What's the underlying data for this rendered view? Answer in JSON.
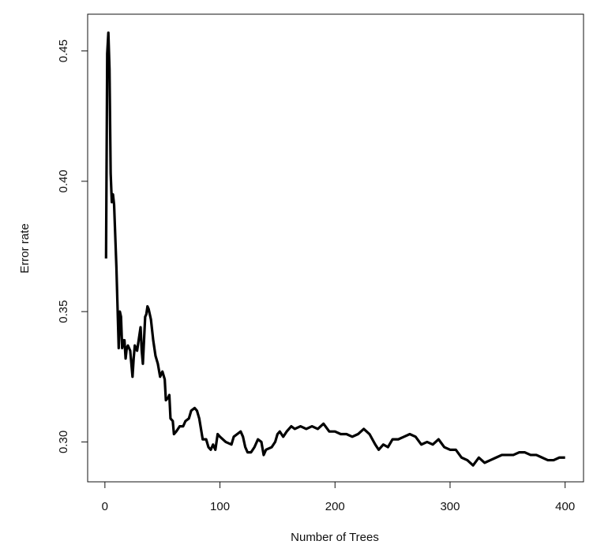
{
  "chart_data": {
    "type": "line",
    "x_label": "Number of Trees",
    "y_label": "Error rate",
    "color": "#000000",
    "x": [
      1,
      2,
      3,
      4,
      5,
      6,
      7,
      8,
      10,
      12,
      13,
      14,
      15,
      16,
      17,
      18,
      19,
      20,
      22,
      24,
      25,
      26,
      28,
      30,
      31,
      32,
      33,
      34,
      35,
      36,
      37,
      38,
      40,
      42,
      44,
      46,
      48,
      50,
      52,
      53,
      55,
      56,
      57,
      59,
      60,
      62,
      65,
      68,
      70,
      73,
      75,
      78,
      80,
      82,
      85,
      88,
      90,
      92,
      94,
      96,
      98,
      100,
      105,
      110,
      112,
      115,
      118,
      120,
      122,
      124,
      127,
      130,
      133,
      136,
      138,
      140,
      145,
      148,
      150,
      152,
      155,
      158,
      162,
      165,
      170,
      175,
      180,
      185,
      190,
      195,
      200,
      205,
      210,
      215,
      220,
      225,
      230,
      235,
      238,
      242,
      246,
      250,
      255,
      260,
      265,
      270,
      275,
      280,
      285,
      290,
      295,
      300,
      305,
      310,
      315,
      320,
      325,
      330,
      335,
      340,
      345,
      350,
      355,
      360,
      365,
      370,
      375,
      380,
      385,
      390,
      395,
      400
    ],
    "values": [
      0.3704,
      0.449,
      0.457,
      0.443,
      0.403,
      0.392,
      0.395,
      0.391,
      0.367,
      0.336,
      0.35,
      0.348,
      0.336,
      0.339,
      0.339,
      0.332,
      0.336,
      0.337,
      0.335,
      0.325,
      0.332,
      0.337,
      0.335,
      0.341,
      0.344,
      0.335,
      0.33,
      0.339,
      0.348,
      0.349,
      0.352,
      0.351,
      0.347,
      0.339,
      0.333,
      0.33,
      0.325,
      0.327,
      0.324,
      0.316,
      0.317,
      0.318,
      0.309,
      0.308,
      0.303,
      0.304,
      0.306,
      0.306,
      0.308,
      0.309,
      0.312,
      0.313,
      0.312,
      0.309,
      0.301,
      0.301,
      0.298,
      0.297,
      0.299,
      0.297,
      0.303,
      0.302,
      0.3,
      0.299,
      0.302,
      0.303,
      0.304,
      0.302,
      0.298,
      0.296,
      0.296,
      0.298,
      0.301,
      0.3,
      0.295,
      0.297,
      0.298,
      0.3,
      0.303,
      0.304,
      0.302,
      0.304,
      0.306,
      0.305,
      0.306,
      0.305,
      0.306,
      0.305,
      0.307,
      0.304,
      0.304,
      0.303,
      0.303,
      0.302,
      0.303,
      0.305,
      0.303,
      0.299,
      0.297,
      0.299,
      0.298,
      0.301,
      0.301,
      0.302,
      0.303,
      0.302,
      0.299,
      0.3,
      0.299,
      0.301,
      0.298,
      0.297,
      0.297,
      0.294,
      0.293,
      0.291,
      0.294,
      0.292,
      0.293,
      0.294,
      0.295,
      0.295,
      0.295,
      0.296,
      0.296,
      0.295,
      0.295,
      0.294,
      0.293,
      0.293,
      0.294,
      0.294
    ],
    "xlim": [
      -15,
      416
    ],
    "ylim": [
      0.2847,
      0.4641
    ],
    "xticks": [
      0,
      100,
      200,
      300,
      400
    ],
    "yticks": [
      {
        "value": 0.3,
        "label": "0.30"
      },
      0.35,
      {
        "value": 0.4,
        "label": "0.40"
      },
      0.45
    ]
  }
}
